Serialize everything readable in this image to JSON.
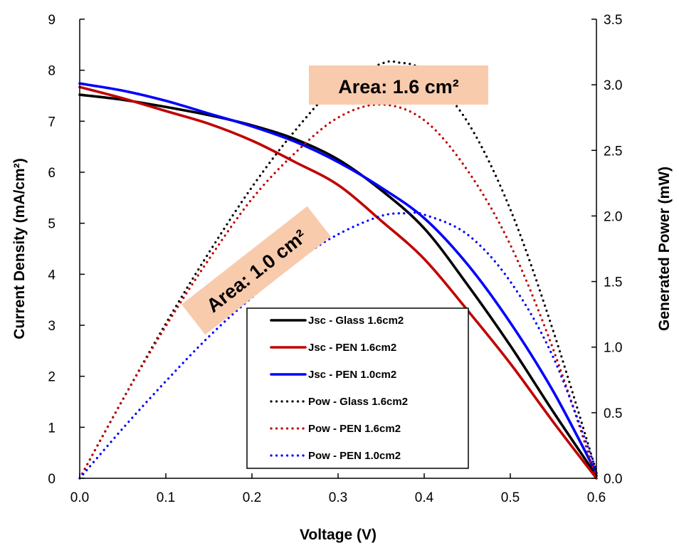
{
  "chart_data": {
    "type": "line",
    "xlabel": "Voltage (V)",
    "ylabel": "Current Density (mA/cm²)",
    "y2label": "Generated Power (mW)",
    "xlim": [
      0,
      0.6
    ],
    "ylim": [
      0,
      9
    ],
    "y2lim": [
      0,
      3.5
    ],
    "x_ticks": [
      "0.0",
      "0.1",
      "0.2",
      "0.3",
      "0.4",
      "0.5",
      "0.6"
    ],
    "y_ticks": [
      "0",
      "1",
      "2",
      "3",
      "4",
      "5",
      "6",
      "7",
      "8",
      "9"
    ],
    "y2_ticks": [
      "0.0",
      "0.5",
      "1.0",
      "1.5",
      "2.0",
      "2.5",
      "3.0",
      "3.5"
    ],
    "grid": false,
    "legend_position": "bottom-center",
    "annotations": [
      {
        "text": "Area: 1.6 cm²",
        "near": "top-center"
      },
      {
        "text": "Area: 1.0 cm²",
        "near": "middle-left"
      }
    ],
    "series": [
      {
        "name": "Jsc - Glass 1.6cm2",
        "axis": "left",
        "style": "solid",
        "color": "#000000",
        "x": [
          0,
          0.05,
          0.1,
          0.15,
          0.2,
          0.25,
          0.3,
          0.35,
          0.4,
          0.45,
          0.5,
          0.55,
          0.6
        ],
        "y": [
          7.52,
          7.42,
          7.28,
          7.12,
          6.92,
          6.65,
          6.25,
          5.65,
          4.9,
          3.8,
          2.6,
          1.3,
          0.05
        ]
      },
      {
        "name": "Jsc - PEN 1.6cm2",
        "axis": "left",
        "style": "solid",
        "color": "#c00000",
        "x": [
          0,
          0.05,
          0.1,
          0.15,
          0.2,
          0.25,
          0.3,
          0.35,
          0.4,
          0.45,
          0.5,
          0.55,
          0.6
        ],
        "y": [
          7.67,
          7.45,
          7.2,
          6.95,
          6.62,
          6.2,
          5.75,
          5.05,
          4.3,
          3.3,
          2.25,
          1.1,
          0.0
        ]
      },
      {
        "name": "Jsc - PEN 1.0cm2",
        "axis": "left",
        "style": "solid",
        "color": "#0000ff",
        "x": [
          0,
          0.05,
          0.1,
          0.15,
          0.2,
          0.25,
          0.3,
          0.35,
          0.4,
          0.45,
          0.5,
          0.55,
          0.6
        ],
        "y": [
          7.74,
          7.6,
          7.4,
          7.15,
          6.9,
          6.6,
          6.2,
          5.7,
          5.1,
          4.2,
          3.05,
          1.7,
          0.1
        ]
      },
      {
        "name": "Pow - Glass 1.6cm2",
        "axis": "right",
        "style": "dotted",
        "color": "#000000",
        "x": [
          0,
          0.05,
          0.1,
          0.15,
          0.2,
          0.25,
          0.3,
          0.35,
          0.37,
          0.4,
          0.45,
          0.5,
          0.55,
          0.6
        ],
        "y": [
          0.0,
          0.6,
          1.18,
          1.72,
          2.22,
          2.65,
          3.0,
          3.16,
          3.17,
          3.1,
          2.72,
          2.05,
          1.12,
          0.05
        ]
      },
      {
        "name": "Pow - PEN 1.6cm2",
        "axis": "right",
        "style": "dotted",
        "color": "#c00000",
        "x": [
          0,
          0.05,
          0.1,
          0.15,
          0.2,
          0.25,
          0.3,
          0.35,
          0.4,
          0.45,
          0.5,
          0.55,
          0.6
        ],
        "y": [
          0.0,
          0.6,
          1.16,
          1.67,
          2.13,
          2.48,
          2.75,
          2.85,
          2.73,
          2.35,
          1.78,
          0.98,
          0.0
        ]
      },
      {
        "name": "Pow - PEN 1.0cm2",
        "axis": "right",
        "style": "dotted",
        "color": "#0000ff",
        "x": [
          0,
          0.05,
          0.1,
          0.15,
          0.2,
          0.25,
          0.3,
          0.35,
          0.38,
          0.4,
          0.45,
          0.5,
          0.55,
          0.6
        ],
        "y": [
          0.0,
          0.38,
          0.74,
          1.08,
          1.38,
          1.65,
          1.86,
          2.0,
          2.02,
          2.01,
          1.86,
          1.5,
          0.92,
          0.06
        ]
      }
    ]
  }
}
